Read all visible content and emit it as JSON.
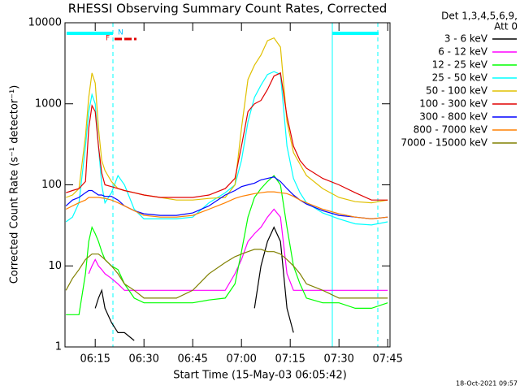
{
  "chart_data": {
    "type": "line",
    "title": "RHESSI Observing Summary Count Rates, Corrected",
    "xlabel": "Start Time (15-May-03 06:05:42)",
    "ylabel": "Corrected Count Rate (s⁻¹ detector⁻¹)",
    "legend_header": [
      "Det 1,3,4,5,6,9,",
      "Att 0"
    ],
    "footer": "18-Oct-2021 09:57",
    "annotations": [
      "F",
      "N"
    ],
    "yscale": "log",
    "xlim": [
      "06:05:42",
      "07:45:42"
    ],
    "xticks": [
      "06:15",
      "06:30",
      "06:45",
      "07:00",
      "07:15",
      "07:30",
      "07:45"
    ],
    "ylim": [
      1,
      10000
    ],
    "yticks": [
      1,
      10,
      100,
      1000,
      10000
    ],
    "legend": "right",
    "x": [
      "06:06",
      "06:08",
      "06:10",
      "06:12",
      "06:13",
      "06:14",
      "06:15",
      "06:16",
      "06:17",
      "06:18",
      "06:20",
      "06:22",
      "06:24",
      "06:27",
      "06:30",
      "06:35",
      "06:40",
      "06:45",
      "06:50",
      "06:55",
      "06:58",
      "07:00",
      "07:02",
      "07:04",
      "07:06",
      "07:08",
      "07:10",
      "07:12",
      "07:14",
      "07:16",
      "07:18",
      "07:20",
      "07:25",
      "07:30",
      "07:35",
      "07:40",
      "07:45"
    ],
    "series": [
      {
        "name": "3 - 6 keV",
        "color": "#000000",
        "values": [
          null,
          null,
          null,
          null,
          null,
          null,
          3,
          4,
          5,
          3,
          2,
          1.5,
          1.5,
          1.2,
          null,
          null,
          null,
          null,
          null,
          null,
          null,
          null,
          null,
          3,
          10,
          20,
          30,
          20,
          3,
          1.5,
          null,
          null,
          null,
          null,
          null,
          null,
          null
        ]
      },
      {
        "name": "6 - 12 keV",
        "color": "#ff00ff",
        "values": [
          null,
          null,
          null,
          null,
          8,
          10,
          12,
          10,
          9,
          8,
          7,
          6,
          5,
          5,
          5,
          5,
          5,
          5,
          5,
          5,
          8,
          12,
          20,
          25,
          30,
          40,
          50,
          40,
          8,
          5,
          5,
          5,
          5,
          5,
          5,
          5,
          5
        ]
      },
      {
        "name": "12 - 25 keV",
        "color": "#00ff00",
        "values": [
          2.5,
          2.5,
          2.5,
          8,
          20,
          30,
          25,
          20,
          15,
          12,
          10,
          9,
          6,
          4,
          3.5,
          3.5,
          3.5,
          3.5,
          3.8,
          4,
          6,
          15,
          40,
          70,
          90,
          110,
          130,
          100,
          30,
          10,
          6,
          4,
          3.5,
          3.5,
          3,
          3,
          3.5
        ]
      },
      {
        "name": "25 - 50 keV",
        "color": "#00ffff",
        "values": [
          35,
          40,
          60,
          300,
          800,
          1300,
          1000,
          300,
          100,
          60,
          80,
          130,
          100,
          50,
          38,
          38,
          38,
          40,
          60,
          80,
          100,
          200,
          600,
          1200,
          1700,
          2300,
          2500,
          2300,
          300,
          120,
          80,
          60,
          45,
          38,
          33,
          32,
          35
        ]
      },
      {
        "name": "50 - 100 keV",
        "color": "#e0c000",
        "values": [
          70,
          75,
          90,
          400,
          1200,
          2400,
          1800,
          500,
          200,
          150,
          110,
          90,
          85,
          80,
          75,
          70,
          65,
          65,
          68,
          70,
          100,
          500,
          2000,
          3000,
          4000,
          6000,
          6500,
          5000,
          600,
          250,
          180,
          130,
          90,
          70,
          62,
          60,
          65
        ]
      },
      {
        "name": "100 - 300 keV",
        "color": "#e00000",
        "values": [
          80,
          85,
          90,
          110,
          500,
          950,
          800,
          300,
          140,
          100,
          95,
          90,
          85,
          80,
          75,
          70,
          70,
          70,
          75,
          90,
          120,
          300,
          800,
          1000,
          1100,
          1500,
          2200,
          2400,
          700,
          300,
          200,
          160,
          120,
          100,
          80,
          65,
          65
        ]
      },
      {
        "name": "300 - 800 keV",
        "color": "#0000ff",
        "values": [
          55,
          65,
          70,
          80,
          85,
          85,
          80,
          75,
          75,
          72,
          72,
          65,
          55,
          48,
          44,
          42,
          42,
          45,
          55,
          75,
          85,
          95,
          100,
          105,
          115,
          120,
          125,
          110,
          90,
          75,
          65,
          58,
          48,
          42,
          40,
          38,
          40
        ]
      },
      {
        "name": "800 - 7000 keV",
        "color": "#ff8000",
        "values": [
          50,
          55,
          60,
          65,
          70,
          70,
          70,
          70,
          69,
          68,
          65,
          60,
          55,
          48,
          42,
          40,
          40,
          42,
          50,
          60,
          68,
          72,
          75,
          78,
          80,
          82,
          82,
          80,
          78,
          72,
          65,
          60,
          50,
          44,
          40,
          38,
          40
        ]
      },
      {
        "name": "7000 - 15000 keV",
        "color": "#808000",
        "values": [
          5,
          7,
          9,
          12,
          13,
          14,
          14,
          14,
          13,
          12,
          10,
          8,
          6,
          5,
          4,
          4,
          4,
          5,
          8,
          11,
          13,
          14,
          15,
          16,
          16,
          15,
          15,
          14,
          12,
          10,
          8,
          6,
          5,
          4,
          4,
          4,
          4
        ]
      }
    ]
  }
}
